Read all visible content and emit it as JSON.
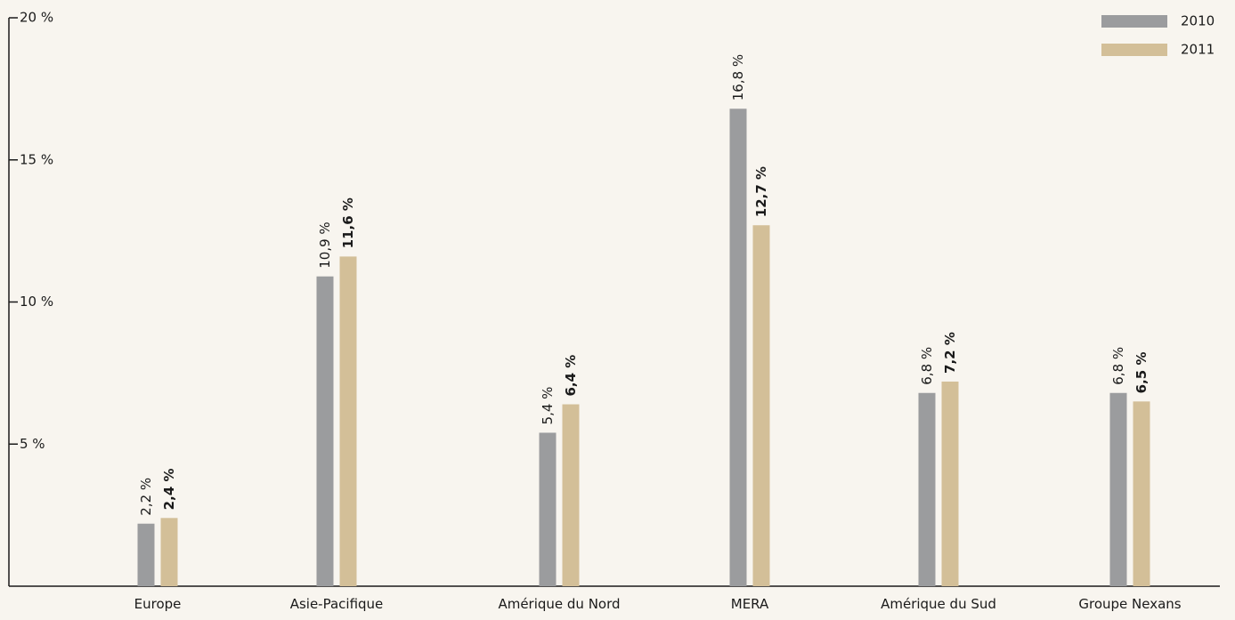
{
  "chart_data": {
    "type": "bar",
    "categories": [
      "Europe",
      "Asie-Pacifique",
      "Amérique du Nord",
      "MERA",
      "Amérique du Sud",
      "Groupe Nexans"
    ],
    "series": [
      {
        "name": "2010",
        "values": [
          2.2,
          10.9,
          5.4,
          16.8,
          6.8,
          6.8
        ],
        "labels": [
          "2,2 %",
          "10,9 %",
          "5,4 %",
          "16,8 %",
          "6,8 %",
          "6,8 %"
        ],
        "color": "#9b9c9e"
      },
      {
        "name": "2011",
        "values": [
          2.4,
          11.6,
          6.4,
          12.7,
          7.2,
          6.5
        ],
        "labels": [
          "2,4 %",
          "11,6 %",
          "6,4 %",
          "12,7 %",
          "7,2 %",
          "6,5 %"
        ],
        "color": "#d3bf98"
      }
    ],
    "y_ticks": [
      {
        "value": 5,
        "label": "5 %"
      },
      {
        "value": 10,
        "label": "10 %"
      },
      {
        "value": 15,
        "label": "15 %"
      },
      {
        "value": 20,
        "label": "20 %"
      }
    ],
    "ylim": [
      0,
      20
    ],
    "title": "",
    "xlabel": "",
    "ylabel": "",
    "legend_position": "top-right",
    "grid": false,
    "axis_color": "#1a1a1a",
    "background": "#f8f5ef"
  }
}
